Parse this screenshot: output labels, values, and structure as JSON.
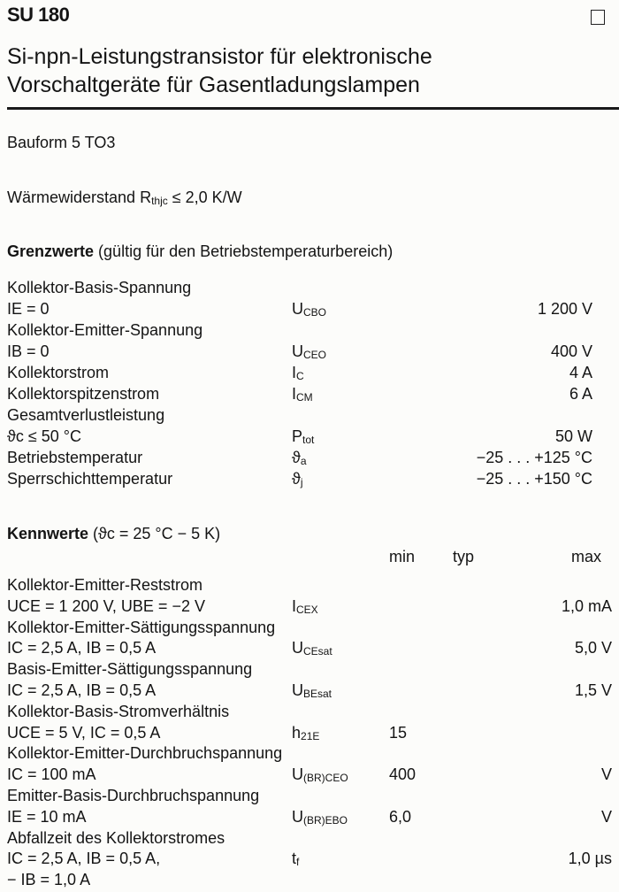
{
  "header": {
    "part_number": "SU 180",
    "title_line1": "Si-npn-Leistungstransistor für elektronische",
    "title_line2": "Vorschaltgeräte für Gasentladungslampen"
  },
  "package": "Bauform 5    TO3",
  "thermal": {
    "label": "Wärmewiderstand",
    "sym": {
      "base": "R",
      "sub": "thjc"
    },
    "value": "≤  2,0 K/W"
  },
  "limits": {
    "heading_bold": "Grenzwerte",
    "heading_rest": " (gültig für den Betriebstemperaturbereich)",
    "lines": [
      {
        "text": "Kollektor-Basis-Spannung"
      },
      {
        "text": "IE = 0",
        "sym": {
          "base": "U",
          "sub": "CBO"
        },
        "val": "1 200 V"
      },
      {
        "text": "Kollektor-Emitter-Spannung"
      },
      {
        "text": "IB = 0",
        "sym": {
          "base": "U",
          "sub": "CEO"
        },
        "val": "400 V"
      },
      {
        "text": "Kollektorstrom",
        "sym": {
          "base": "I",
          "sub": "C"
        },
        "val": "4 A"
      },
      {
        "text": "Kollektorspitzenstrom",
        "sym": {
          "base": "I",
          "sub": "CM"
        },
        "val": "6 A"
      },
      {
        "text": "Gesamtverlustleistung"
      },
      {
        "text": "ϑc  ≤  50 °C",
        "sym": {
          "base": "P",
          "sub": "tot"
        },
        "val": "50 W"
      },
      {
        "text": "Betriebstemperatur",
        "sym": {
          "base": "ϑ",
          "sub": "a"
        },
        "val": "−25 . . . +125 °C"
      },
      {
        "text": "Sperrschichttemperatur",
        "sym": {
          "base": "ϑ",
          "sub": "j"
        },
        "val": "−25 . . . +150 °C"
      }
    ]
  },
  "characteristics": {
    "heading_bold": "Kennwerte",
    "heading_rest": " (ϑc = 25 °C − 5 K)",
    "col_min": "min",
    "col_typ": "typ",
    "col_max": "max",
    "lines": [
      {
        "text": "Kollektor-Emitter-Reststrom"
      },
      {
        "text": "UCE = 1 200 V, UBE = −2 V",
        "sym": {
          "base": "I",
          "sub": "CEX"
        },
        "max": "1,0 mA"
      },
      {
        "text": "Kollektor-Emitter-Sättigungsspannung"
      },
      {
        "text": "IC = 2,5 A, IB = 0,5 A",
        "sym": {
          "base": "U",
          "sub": "CEsat"
        },
        "max": "5,0 V"
      },
      {
        "text": "Basis-Emitter-Sättigungsspannung"
      },
      {
        "text": "IC = 2,5 A, IB = 0,5 A",
        "sym": {
          "base": "U",
          "sub": "BEsat"
        },
        "max": "1,5 V"
      },
      {
        "text": "Kollektor-Basis-Stromverhältnis"
      },
      {
        "text": "UCE = 5 V, IC = 0,5 A",
        "sym": {
          "base": "h",
          "sub": "21E"
        },
        "min": "15"
      },
      {
        "text": "Kollektor-Emitter-Durchbruchspannung"
      },
      {
        "text": "IC = 100 mA",
        "sym": {
          "base": "U",
          "sub": "(BR)CEO"
        },
        "min": "400",
        "max": "V"
      },
      {
        "text": "Emitter-Basis-Durchbruchspannung"
      },
      {
        "text": "IE = 10 mA",
        "sym": {
          "base": "U",
          "sub": "(BR)EBO"
        },
        "min": "6,0",
        "max": "V"
      },
      {
        "text": "Abfallzeit des Kollektorstromes"
      },
      {
        "text": "IC = 2,5 A, IB = 0,5 A,",
        "sym": {
          "base": "t",
          "sub": "f"
        },
        "max": "1,0 µs"
      },
      {
        "text": "− IB = 1,0 A"
      }
    ]
  }
}
